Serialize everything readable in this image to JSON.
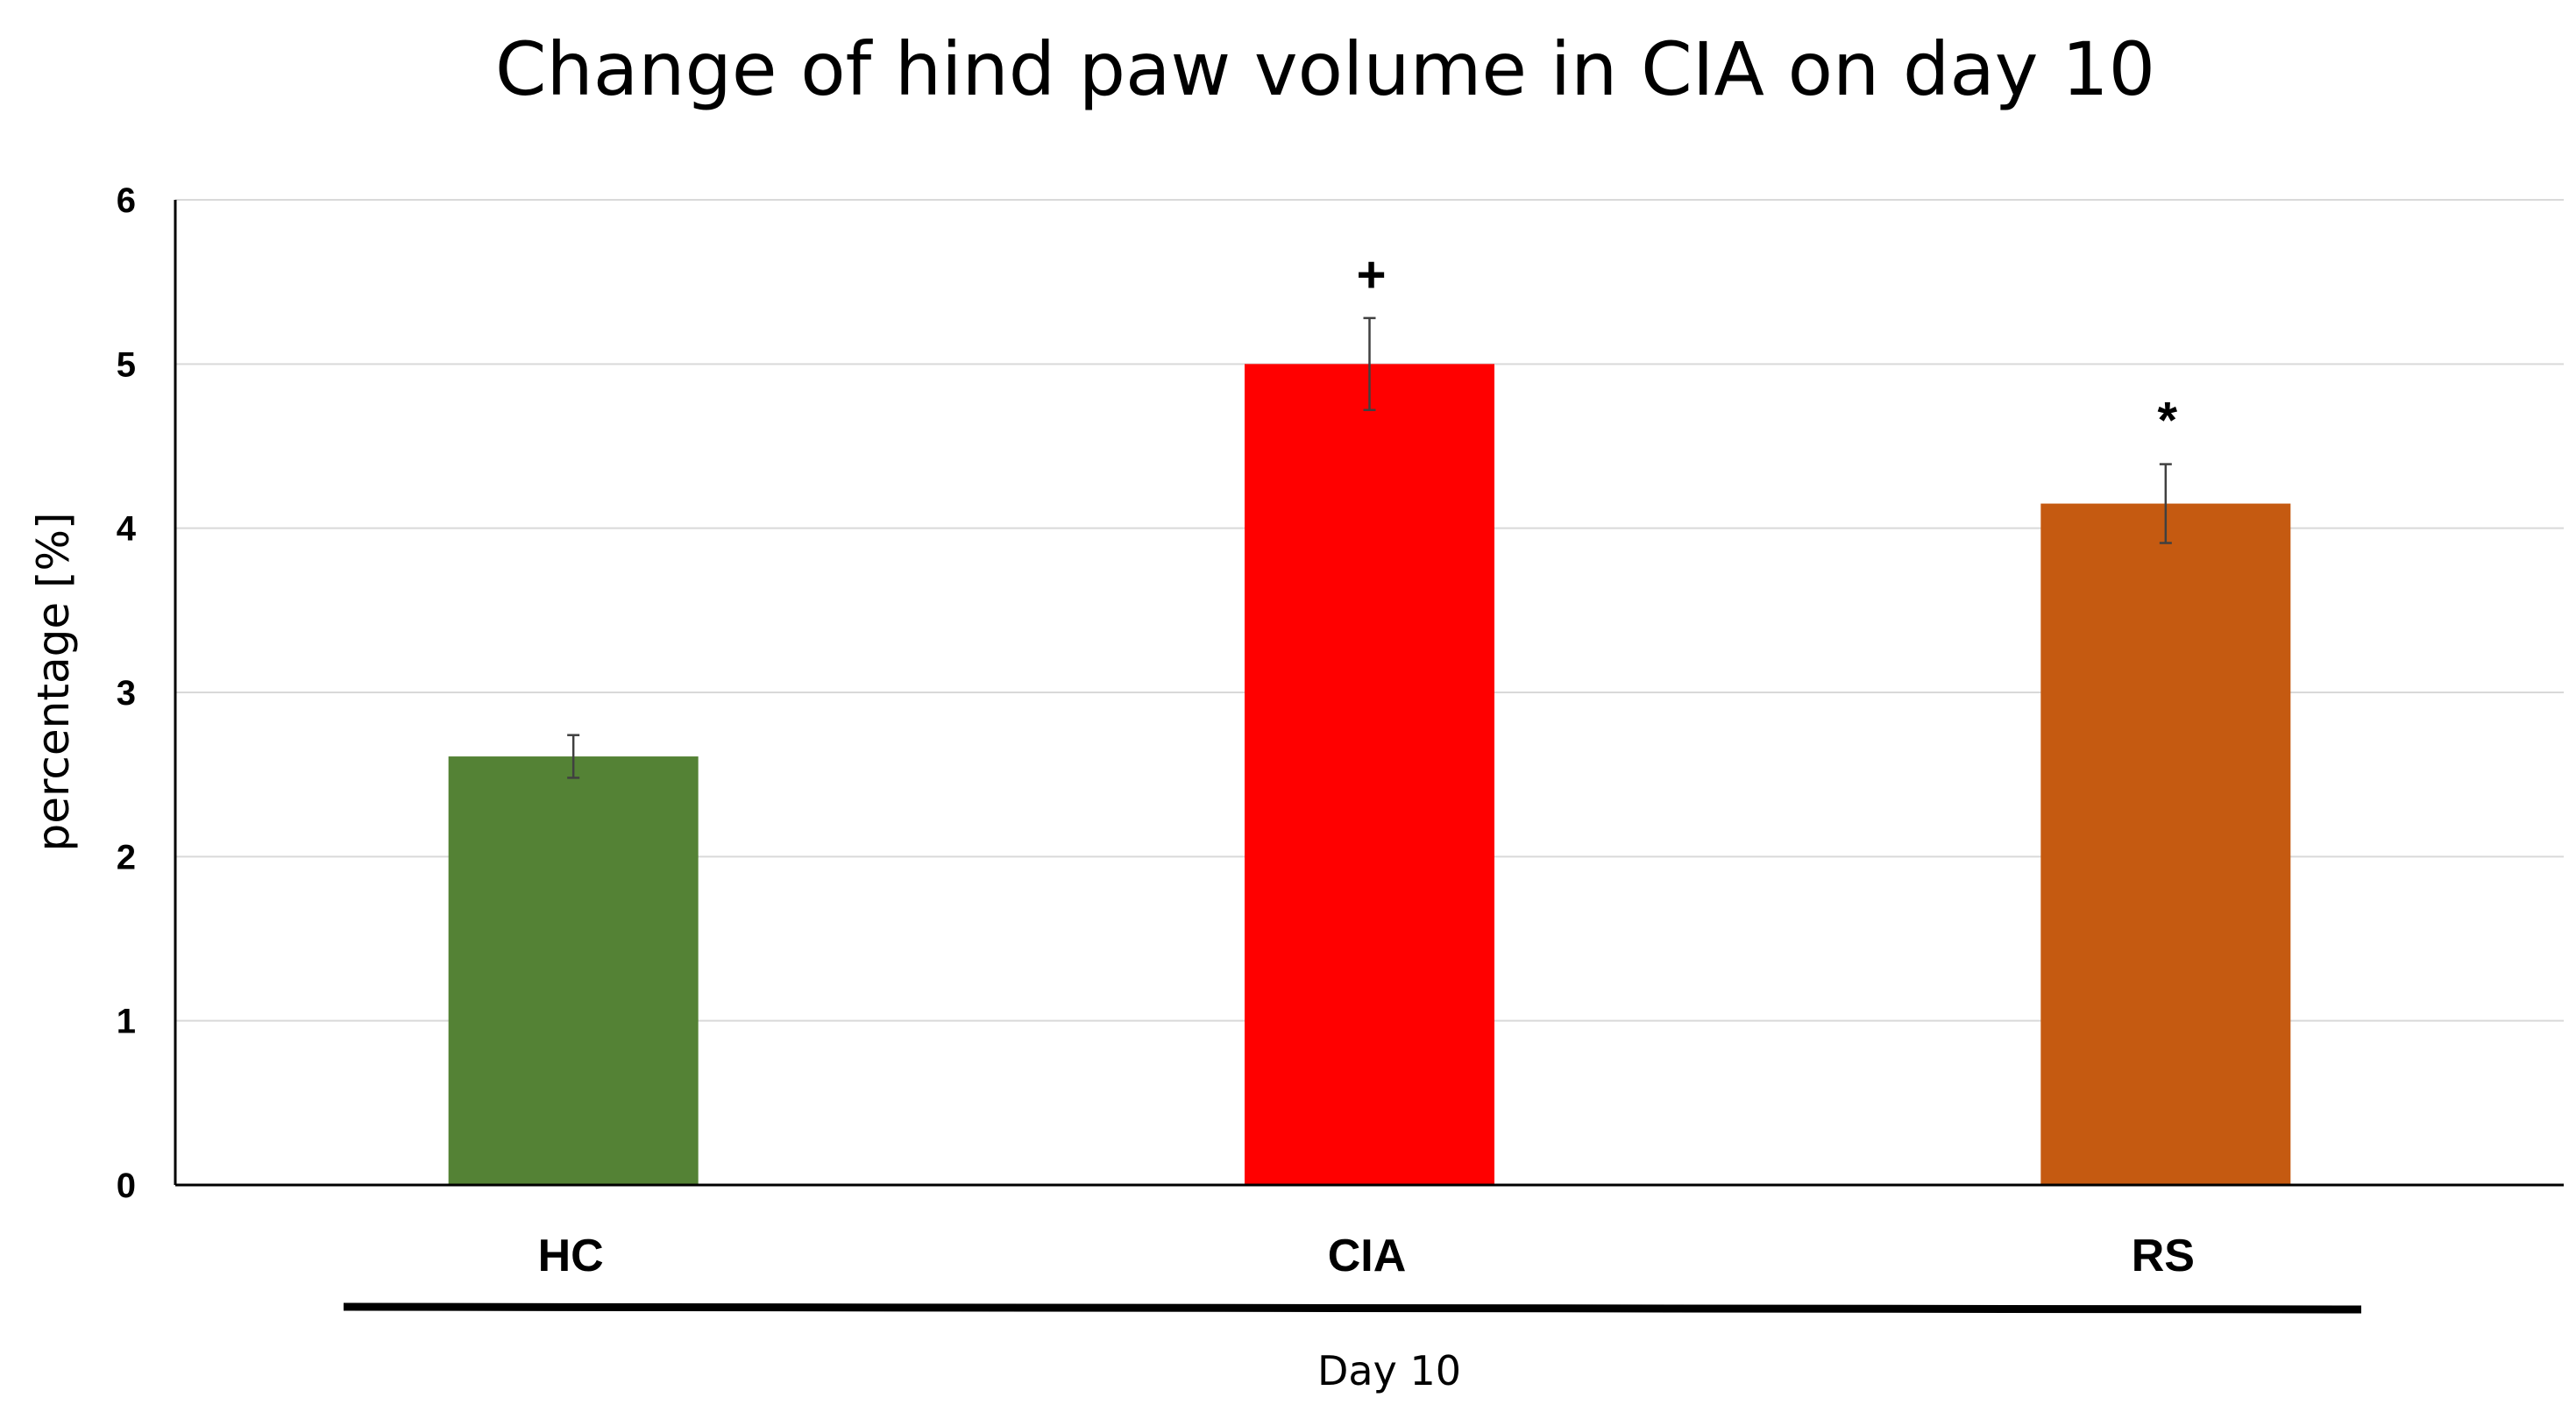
{
  "chart_data": {
    "type": "bar",
    "title": "Change of hind paw volume in CIA on day 10",
    "ylabel": "percentage [%]",
    "xlabel": "Day 10",
    "ylim": [
      0,
      6
    ],
    "yticks": [
      "0",
      "1",
      "2",
      "3",
      "4",
      "5",
      "6"
    ],
    "grid": true,
    "categories": [
      "HC",
      "CIA",
      "RS"
    ],
    "values": [
      2.61,
      5.0,
      4.15
    ],
    "errors": [
      0.13,
      0.28,
      0.24
    ],
    "colors": [
      "#548235",
      "#ff0000",
      "#c55a11"
    ],
    "annotations": [
      "",
      "+",
      "*"
    ]
  }
}
